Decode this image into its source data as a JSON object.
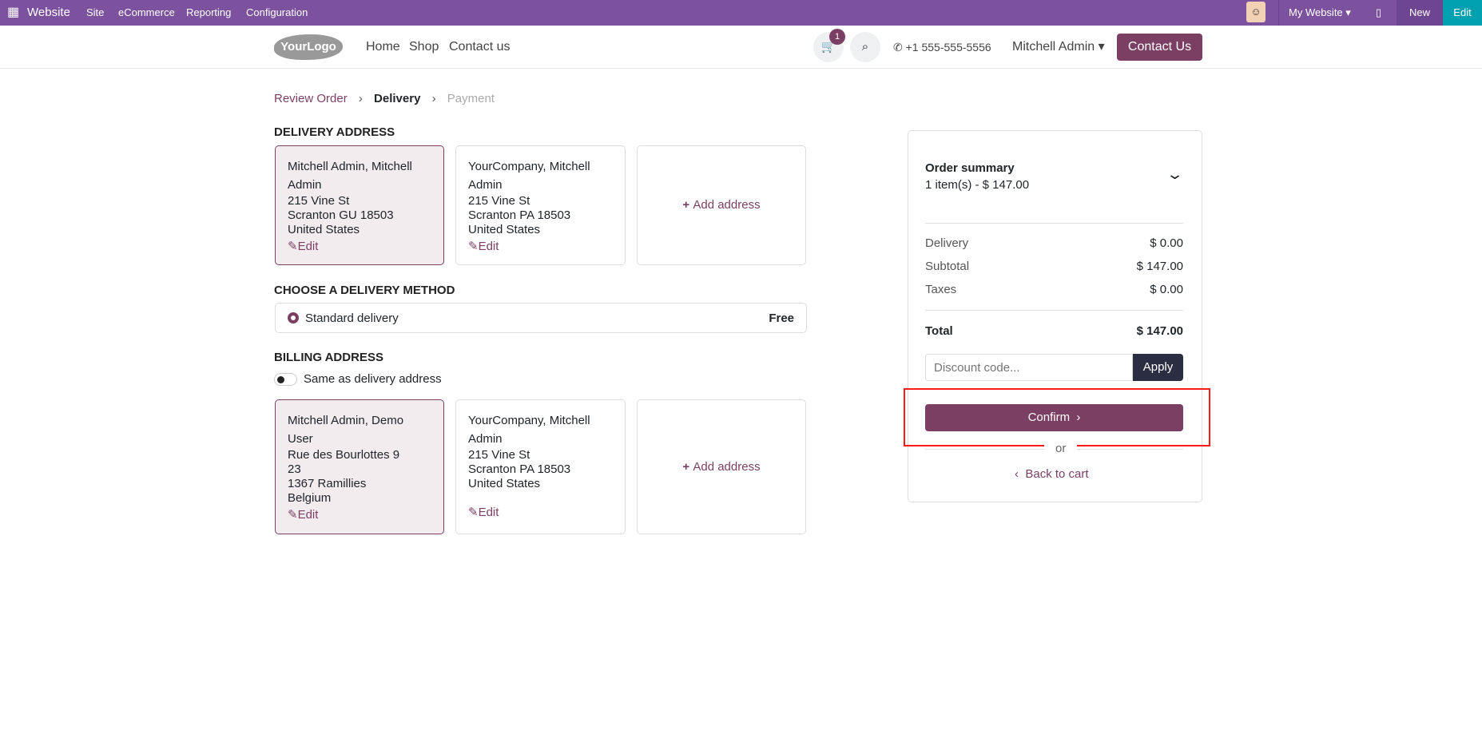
{
  "topbar": {
    "app": "Website",
    "menu": [
      "Site",
      "eCommerce",
      "Reporting",
      "Configuration"
    ],
    "website": "My Website",
    "new": "New",
    "edit": "Edit"
  },
  "nav": {
    "logo": "YourLogo",
    "links": [
      "Home",
      "Shop",
      "Contact us"
    ],
    "cart_count": "1",
    "phone": "+1 555-555-5556",
    "user": "Mitchell Admin",
    "cta": "Contact Us"
  },
  "breadcrumb": [
    "Review Order",
    "Delivery",
    "Payment"
  ],
  "delivery": {
    "title": "DELIVERY ADDRESS",
    "cards": [
      {
        "name": "Mitchell Admin, Mitchell Admin",
        "lines": [
          "215 Vine St",
          "Scranton GU 18503",
          "United States"
        ],
        "edit": "Edit"
      },
      {
        "name": "YourCompany, Mitchell Admin",
        "lines": [
          "215 Vine St",
          "Scranton PA 18503",
          "United States"
        ],
        "edit": "Edit"
      }
    ],
    "add": "Add address"
  },
  "method": {
    "title": "CHOOSE A DELIVERY METHOD",
    "name": "Standard delivery",
    "price": "Free"
  },
  "billing": {
    "title": "BILLING ADDRESS",
    "toggle": "Same as delivery address",
    "cards": [
      {
        "name": "Mitchell Admin, Demo User",
        "lines": [
          "Rue des Bourlottes 9",
          "23",
          "1367 Ramillies",
          "Belgium"
        ],
        "edit": "Edit"
      },
      {
        "name": "YourCompany, Mitchell Admin",
        "lines": [
          "215 Vine St",
          "Scranton PA 18503",
          "United States"
        ],
        "edit": "Edit"
      }
    ],
    "add": "Add address"
  },
  "summary": {
    "title": "Order summary",
    "items": "1 item(s) -  $ 147.00",
    "delivery_label": "Delivery",
    "delivery": "$ 0.00",
    "subtotal_label": "Subtotal",
    "subtotal": "$ 147.00",
    "taxes_label": "Taxes",
    "taxes": "$ 0.00",
    "total_label": "Total",
    "total": "$ 147.00",
    "discount_placeholder": "Discount code...",
    "apply": "Apply",
    "confirm": "Confirm",
    "or": "or",
    "back": "Back to cart"
  },
  "colors": {
    "brand": "#7b3f64",
    "topbar": "#7c519e",
    "highlight": "#ff0000"
  }
}
